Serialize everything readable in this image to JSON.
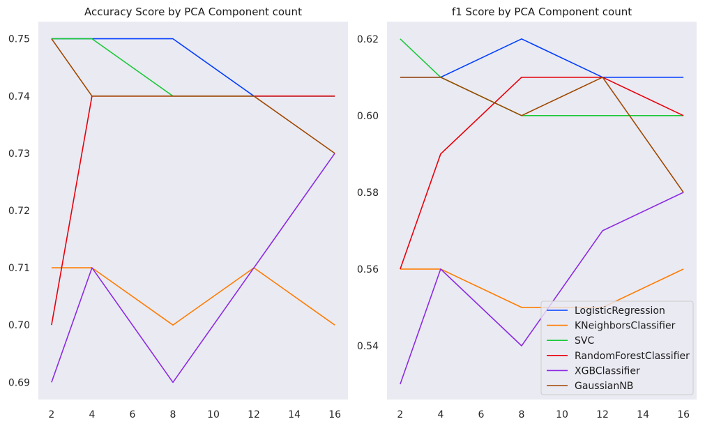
{
  "chart_data": [
    {
      "type": "line",
      "title": "Accuracy Score by PCA Component count",
      "xlabel": "",
      "ylabel": "",
      "x": [
        2,
        4,
        8,
        12,
        16
      ],
      "xticks": [
        2,
        4,
        6,
        8,
        10,
        12,
        14,
        16
      ],
      "xtick_labels": [
        "2",
        "4",
        "6",
        "8",
        "10",
        "12",
        "14",
        "16"
      ],
      "xlim": [
        1.35,
        16.65
      ],
      "yticks": [
        0.69,
        0.7,
        0.71,
        0.72,
        0.73,
        0.74,
        0.75
      ],
      "ytick_labels": [
        "0.69",
        "0.70",
        "0.71",
        "0.72",
        "0.73",
        "0.74",
        "0.75"
      ],
      "ylim": [
        0.687,
        0.753
      ],
      "grid": false,
      "legend": false,
      "series": [
        {
          "name": "LogisticRegression",
          "color": "#023eff",
          "values": [
            0.75,
            0.75,
            0.75,
            0.74,
            0.74
          ]
        },
        {
          "name": "KNeighborsClassifier",
          "color": "#ff7c00",
          "values": [
            0.71,
            0.71,
            0.7,
            0.71,
            0.7
          ]
        },
        {
          "name": "SVC",
          "color": "#1ac938",
          "values": [
            0.75,
            0.75,
            0.74,
            0.74,
            0.74
          ]
        },
        {
          "name": "RandomForestClassifier",
          "color": "#e8000b",
          "values": [
            0.7,
            0.74,
            0.74,
            0.74,
            0.74
          ]
        },
        {
          "name": "XGBClassifier",
          "color": "#8b2be2",
          "values": [
            0.69,
            0.71,
            0.69,
            0.71,
            0.73
          ]
        },
        {
          "name": "GaussianNB",
          "color": "#9f4800",
          "values": [
            0.75,
            0.74,
            0.74,
            0.74,
            0.73
          ]
        }
      ]
    },
    {
      "type": "line",
      "title": "f1 Score by PCA Component count",
      "xlabel": "",
      "ylabel": "",
      "x": [
        2,
        4,
        8,
        12,
        16
      ],
      "xticks": [
        2,
        4,
        6,
        8,
        10,
        12,
        14,
        16
      ],
      "xtick_labels": [
        "2",
        "4",
        "6",
        "8",
        "10",
        "12",
        "14",
        "16"
      ],
      "xlim": [
        1.35,
        16.65
      ],
      "yticks": [
        0.54,
        0.56,
        0.58,
        0.6,
        0.62
      ],
      "ytick_labels": [
        "0.54",
        "0.56",
        "0.58",
        "0.60",
        "0.62"
      ],
      "ylim": [
        0.526,
        0.6245
      ],
      "grid": false,
      "legend": true,
      "legend_position": "bottom-right",
      "series": [
        {
          "name": "LogisticRegression",
          "color": "#023eff",
          "values": [
            0.61,
            0.61,
            0.62,
            0.61,
            0.61
          ]
        },
        {
          "name": "KNeighborsClassifier",
          "color": "#ff7c00",
          "values": [
            0.56,
            0.56,
            0.55,
            0.55,
            0.56
          ]
        },
        {
          "name": "SVC",
          "color": "#1ac938",
          "values": [
            0.62,
            0.61,
            0.6,
            0.6,
            0.6
          ]
        },
        {
          "name": "RandomForestClassifier",
          "color": "#e8000b",
          "values": [
            0.56,
            0.59,
            0.61,
            0.61,
            0.6
          ]
        },
        {
          "name": "XGBClassifier",
          "color": "#8b2be2",
          "values": [
            0.53,
            0.56,
            0.54,
            0.57,
            0.58
          ]
        },
        {
          "name": "GaussianNB",
          "color": "#9f4800",
          "values": [
            0.61,
            0.61,
            0.6,
            0.61,
            0.58
          ]
        }
      ]
    }
  ],
  "style": {
    "plot_background": "#eaeaf2",
    "figure_background": "#ffffff",
    "text_color": "#262626"
  }
}
